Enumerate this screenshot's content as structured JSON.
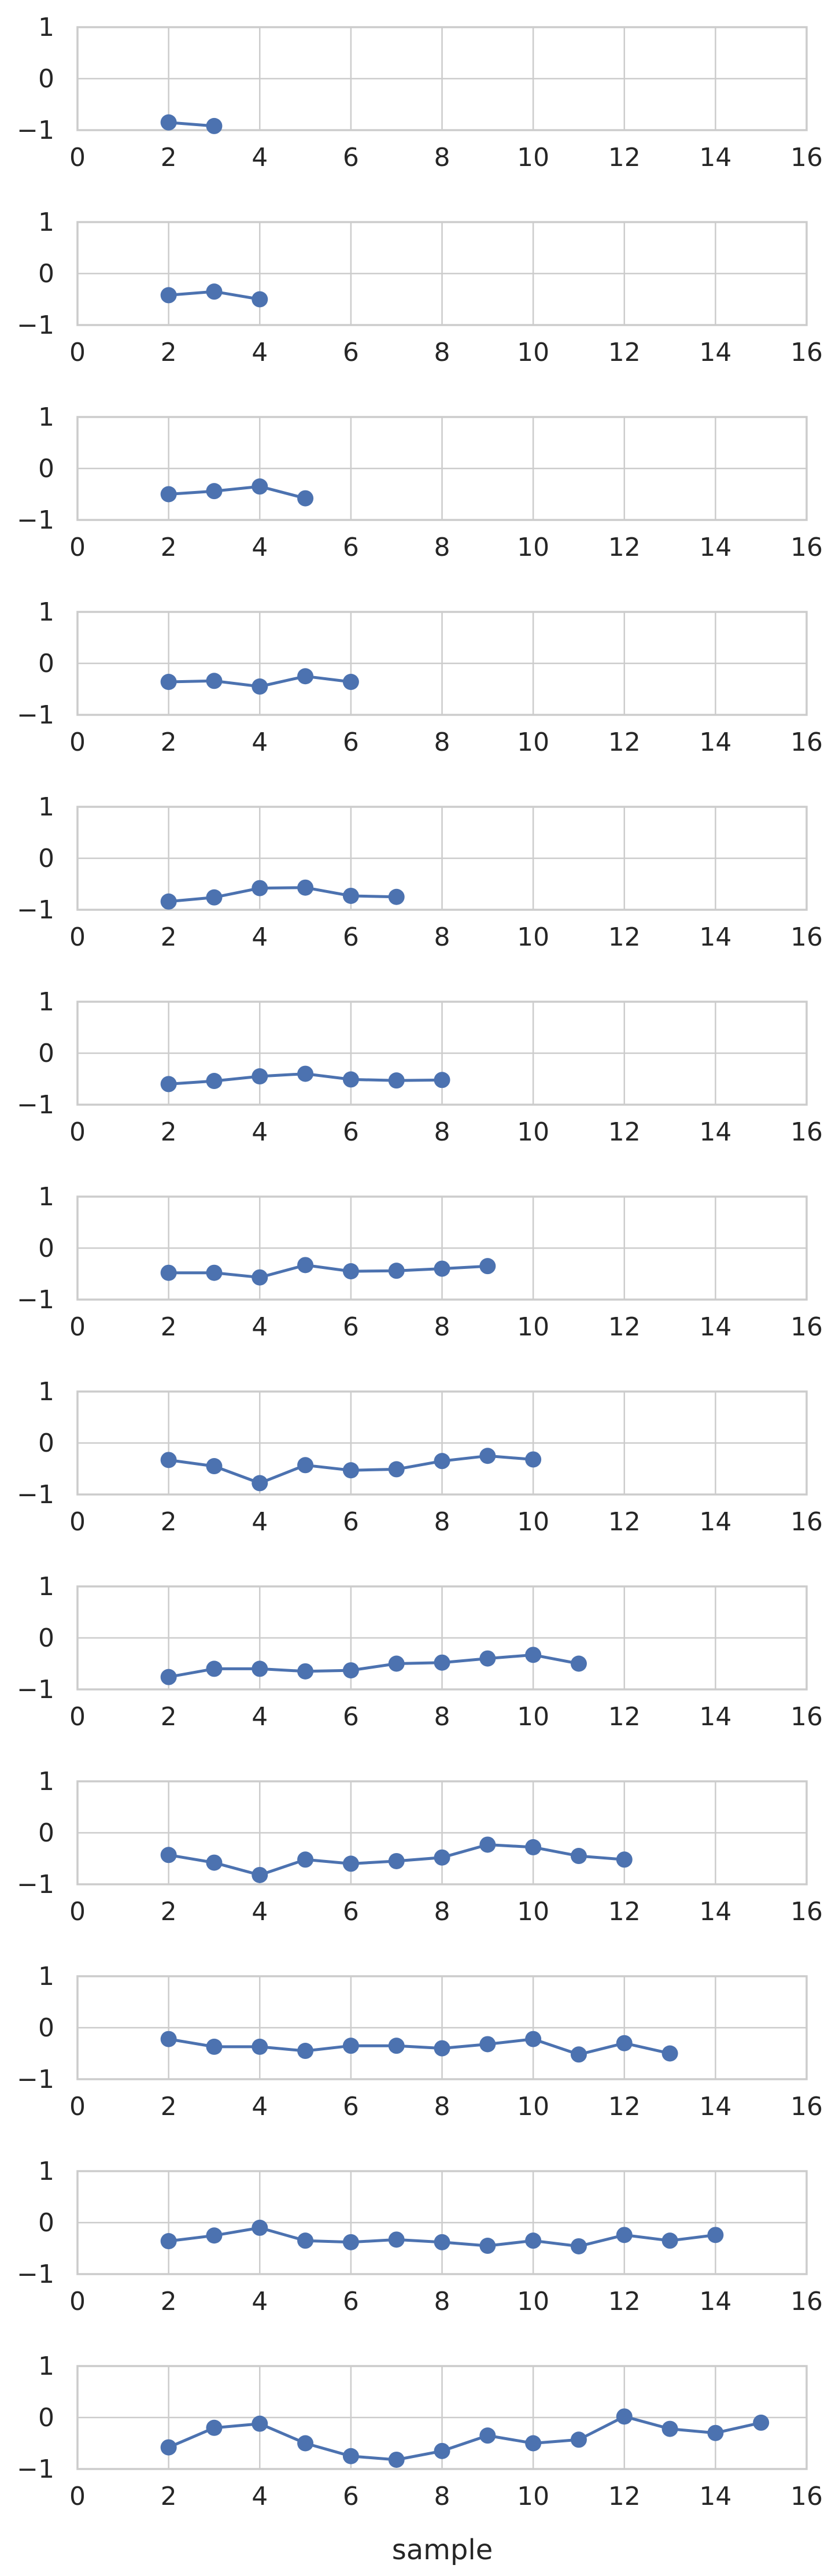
{
  "chart_data": {
    "type": "line",
    "xlabel": "sample",
    "xlim": [
      0,
      16
    ],
    "ylim": [
      -1,
      1
    ],
    "xticks": [
      0,
      2,
      4,
      6,
      8,
      10,
      12,
      14,
      16
    ],
    "yticks": [
      1,
      0,
      -1
    ],
    "grid": true,
    "colors": {
      "series": "#4c72b0",
      "grid": "#cccccc",
      "text": "#262626"
    },
    "panels": [
      {
        "x": [
          2,
          3
        ],
        "y": [
          -0.85,
          -0.92
        ]
      },
      {
        "x": [
          2,
          3,
          4
        ],
        "y": [
          -0.42,
          -0.35,
          -0.5
        ]
      },
      {
        "x": [
          2,
          3,
          4,
          5
        ],
        "y": [
          -0.5,
          -0.44,
          -0.35,
          -0.58
        ]
      },
      {
        "x": [
          2,
          3,
          4,
          5,
          6
        ],
        "y": [
          -0.36,
          -0.34,
          -0.45,
          -0.25,
          -0.36
        ]
      },
      {
        "x": [
          2,
          3,
          4,
          5,
          6,
          7
        ],
        "y": [
          -0.84,
          -0.76,
          -0.58,
          -0.57,
          -0.73,
          -0.75
        ]
      },
      {
        "x": [
          2,
          3,
          4,
          5,
          6,
          7,
          8
        ],
        "y": [
          -0.6,
          -0.54,
          -0.45,
          -0.4,
          -0.51,
          -0.53,
          -0.52
        ]
      },
      {
        "x": [
          2,
          3,
          4,
          5,
          6,
          7,
          8,
          9
        ],
        "y": [
          -0.48,
          -0.48,
          -0.57,
          -0.33,
          -0.45,
          -0.44,
          -0.4,
          -0.35
        ]
      },
      {
        "x": [
          2,
          3,
          4,
          5,
          6,
          7,
          8,
          9,
          10
        ],
        "y": [
          -0.33,
          -0.45,
          -0.78,
          -0.43,
          -0.53,
          -0.51,
          -0.35,
          -0.25,
          -0.32
        ]
      },
      {
        "x": [
          2,
          3,
          4,
          5,
          6,
          7,
          8,
          9,
          10,
          11
        ],
        "y": [
          -0.76,
          -0.6,
          -0.6,
          -0.65,
          -0.63,
          -0.5,
          -0.48,
          -0.4,
          -0.33,
          -0.5
        ]
      },
      {
        "x": [
          2,
          3,
          4,
          5,
          6,
          7,
          8,
          9,
          10,
          11,
          12
        ],
        "y": [
          -0.43,
          -0.58,
          -0.82,
          -0.52,
          -0.6,
          -0.55,
          -0.48,
          -0.23,
          -0.28,
          -0.45,
          -0.52
        ]
      },
      {
        "x": [
          2,
          3,
          4,
          5,
          6,
          7,
          8,
          9,
          10,
          11,
          12,
          13
        ],
        "y": [
          -0.22,
          -0.37,
          -0.37,
          -0.45,
          -0.35,
          -0.35,
          -0.4,
          -0.32,
          -0.22,
          -0.52,
          -0.3,
          -0.5
        ]
      },
      {
        "x": [
          2,
          3,
          4,
          5,
          6,
          7,
          8,
          9,
          10,
          11,
          12,
          13,
          14
        ],
        "y": [
          -0.36,
          -0.25,
          -0.1,
          -0.35,
          -0.38,
          -0.33,
          -0.38,
          -0.45,
          -0.35,
          -0.46,
          -0.24,
          -0.35,
          -0.24
        ]
      },
      {
        "x": [
          2,
          3,
          4,
          5,
          6,
          7,
          8,
          9,
          10,
          11,
          12,
          13,
          14,
          15
        ],
        "y": [
          -0.58,
          -0.2,
          -0.12,
          -0.5,
          -0.75,
          -0.82,
          -0.65,
          -0.35,
          -0.5,
          -0.43,
          0.02,
          -0.22,
          -0.3,
          -0.1
        ]
      }
    ]
  }
}
